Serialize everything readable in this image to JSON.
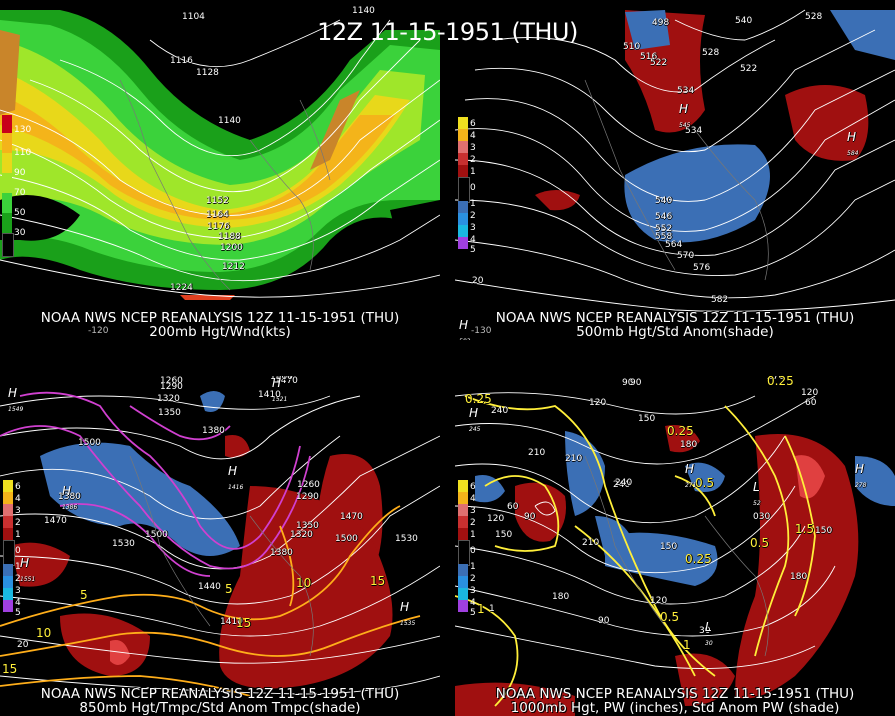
{
  "title": "12Z 11-15-1951 (THU)",
  "panels": [
    {
      "id": "p1",
      "caption1": "NOAA NWS NCEP REANALYSIS 12Z 11-15-1951 (THU)",
      "caption2": "200mb Hgt/Wnd(kts)",
      "legend": [
        "130",
        "110",
        "90",
        "70",
        "50",
        "30"
      ],
      "labels": [
        "1104",
        "1116",
        "1128",
        "1140",
        "1140",
        "1152",
        "1164",
        "1176",
        "1188",
        "1200",
        "1212",
        "1224"
      ],
      "lon": "-120"
    },
    {
      "id": "p2",
      "caption1": "NOAA NWS NCEP REANALYSIS 12Z 11-15-1951 (THU)",
      "caption2": "500mb Hgt/Std Anom(shade)",
      "legend": [
        "6",
        "4",
        "3",
        "2",
        "1",
        "0",
        "1",
        "2",
        "3",
        "4",
        "5"
      ],
      "labels": [
        "498",
        "510",
        "516",
        "522",
        "528",
        "534",
        "540",
        "528",
        "522",
        "534",
        "540",
        "546",
        "552",
        "558",
        "564",
        "570",
        "576",
        "582",
        "20"
      ],
      "highs": [
        "545",
        "584",
        "583"
      ],
      "lon": "-130"
    },
    {
      "id": "p3",
      "caption1": "NOAA NWS NCEP REANALYSIS 12Z 11-15-1951 (THU)",
      "caption2": "850mb Hgt/Tmpc/Std Anom Tmpc(shade)",
      "legend": [
        "6",
        "4",
        "3",
        "2",
        "1",
        "0",
        "1",
        "2",
        "3",
        "4",
        "5"
      ],
      "labels": [
        "1500",
        "1260",
        "1290",
        "1320",
        "1350",
        "1380",
        "1410",
        "1470",
        "1500",
        "1380",
        "1470",
        "1530",
        "1500",
        "1440",
        "1410",
        "1260",
        "1290",
        "1320",
        "1350",
        "1380",
        "1470",
        "1500",
        "1530",
        "20"
      ],
      "yellow": [
        "5",
        "10",
        "15",
        "10",
        "15",
        "15",
        "5"
      ],
      "highs": [
        "1549",
        "1521",
        "1416",
        "1386",
        "1551",
        "1535"
      ]
    },
    {
      "id": "p4",
      "caption1": "NOAA NWS NCEP REANALYSIS 12Z 11-15-1951 (THU)",
      "caption2": "1000mb Hgt, PW (inches), Std Anom PW (shade)",
      "legend": [
        "6",
        "4",
        "3",
        "2",
        "1",
        "0",
        "1",
        "2",
        "3",
        "4",
        "5"
      ],
      "labels": [
        "90",
        "120",
        "150",
        "180",
        "210",
        "240",
        "210",
        "240",
        "150",
        "120",
        "90",
        "60",
        "90",
        "150",
        "180",
        "120",
        "90",
        "30",
        "60",
        "120",
        "150",
        "180",
        "210",
        "240",
        "270",
        "030",
        "1"
      ],
      "yellow": [
        "0.25",
        "0.5",
        "1",
        "0.25",
        "0.25",
        "0.5",
        "0.5",
        "1",
        "1.5",
        "1",
        "0.25"
      ],
      "highs": [
        "271",
        "245",
        "278"
      ],
      "lows": [
        "30",
        "52"
      ]
    }
  ]
}
